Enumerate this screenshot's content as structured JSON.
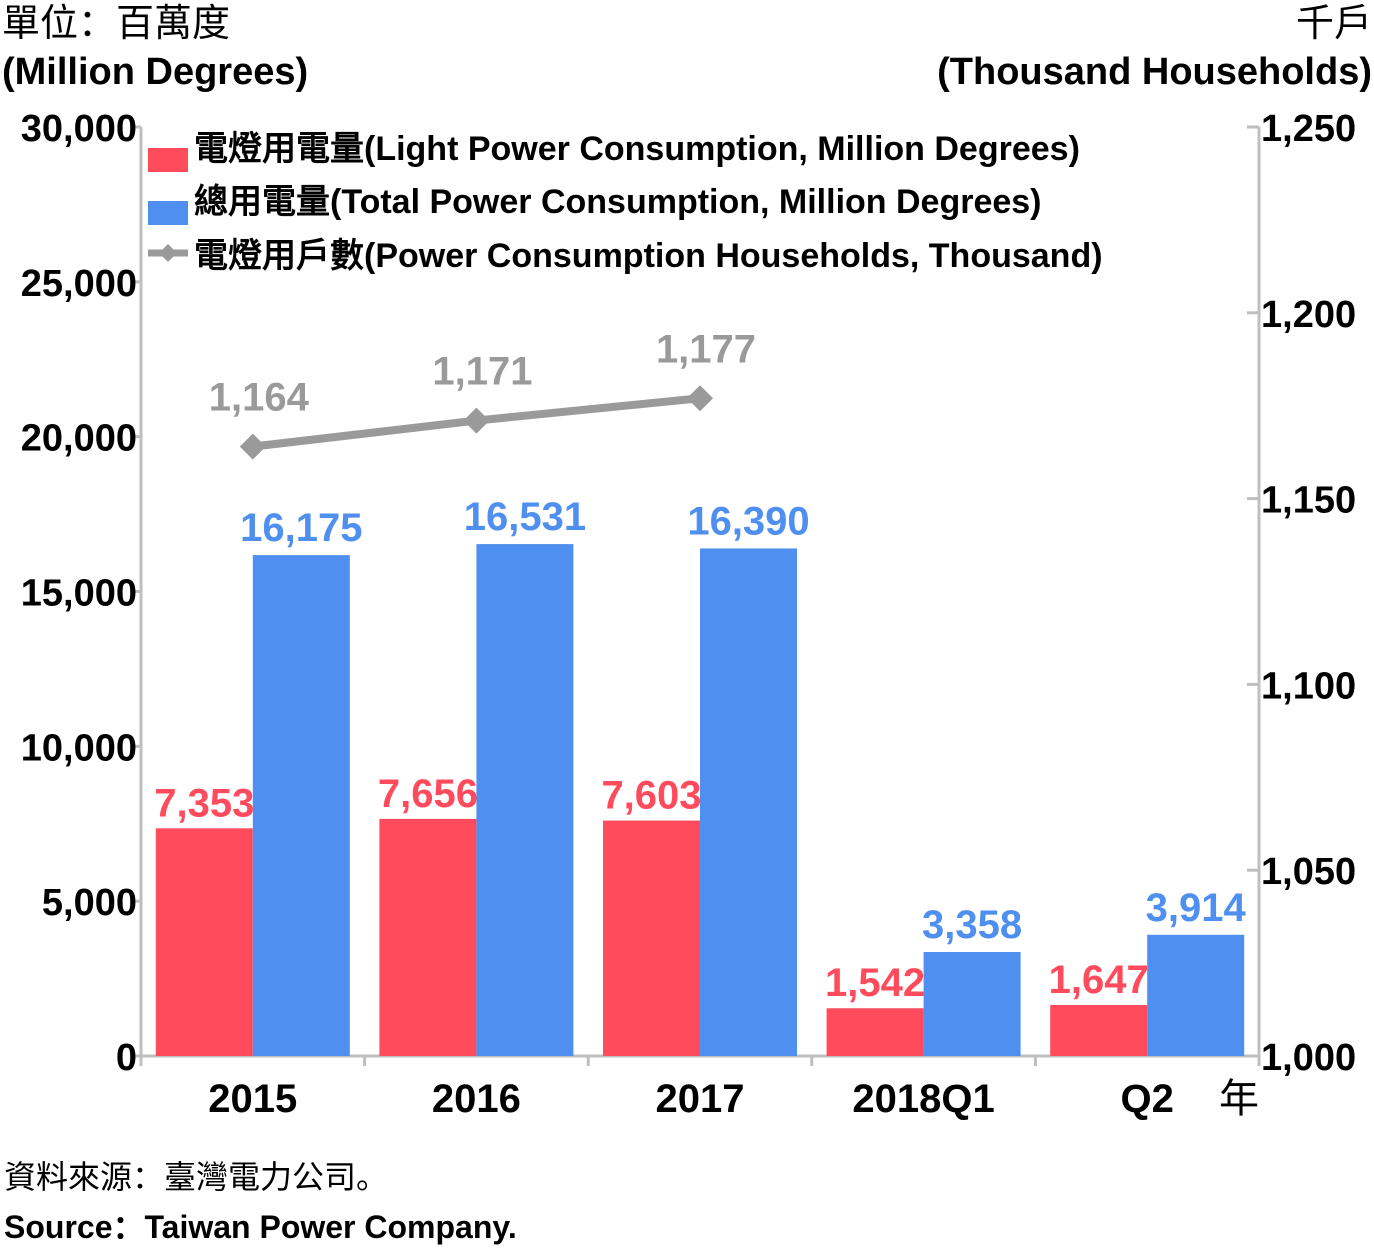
{
  "units": {
    "left_zh": "單位：百萬度",
    "left_en": "(Million Degrees)",
    "right_zh": "千戶",
    "right_en": "(Thousand Households)"
  },
  "chart_data": {
    "type": "bar",
    "categories": [
      "2015",
      "2016",
      "2017",
      "2018Q1",
      "Q2"
    ],
    "x_unit": "年",
    "series": [
      {
        "name": "電燈用電量(Light Power Consumption, Million Degrees)",
        "type": "bar",
        "axis": "left",
        "color": "#ff4b5c",
        "values": [
          7353,
          7656,
          7603,
          1542,
          1647
        ],
        "labels": [
          "7,353",
          "7,656",
          "7,603",
          "1,542",
          "1,647"
        ]
      },
      {
        "name": "總用電量(Total Power Consumption, Million Degrees)",
        "type": "bar",
        "axis": "left",
        "color": "#4e8fef",
        "values": [
          16175,
          16531,
          16390,
          3358,
          3914
        ],
        "labels": [
          "16,175",
          "16,531",
          "16,390",
          "3,358",
          "3,914"
        ]
      },
      {
        "name": "電燈用戶數(Power Consumption Households, Thousand)",
        "type": "line",
        "axis": "right",
        "color": "#9a9a9a",
        "values": [
          1164,
          1171,
          1177,
          null,
          null
        ],
        "labels": [
          "1,164",
          "1,171",
          "1,177",
          "",
          ""
        ]
      }
    ],
    "y_left": {
      "lim": [
        0,
        30000
      ],
      "ticks": [
        0,
        5000,
        10000,
        15000,
        20000,
        25000,
        30000
      ],
      "tick_labels": [
        "0",
        "5,000",
        "10,000",
        "15,000",
        "20,000",
        "25,000",
        "30,000"
      ]
    },
    "y_right": {
      "lim": [
        1000,
        1250
      ],
      "ticks": [
        1000,
        1050,
        1100,
        1150,
        1200,
        1250
      ],
      "tick_labels": [
        "1,000",
        "1,050",
        "1,100",
        "1,150",
        "1,200",
        "1,250"
      ]
    },
    "grid": false,
    "legend_position": "top-left"
  },
  "source": {
    "zh": "資料來源：臺灣電力公司。",
    "en": "Source：Taiwan Power Company."
  }
}
